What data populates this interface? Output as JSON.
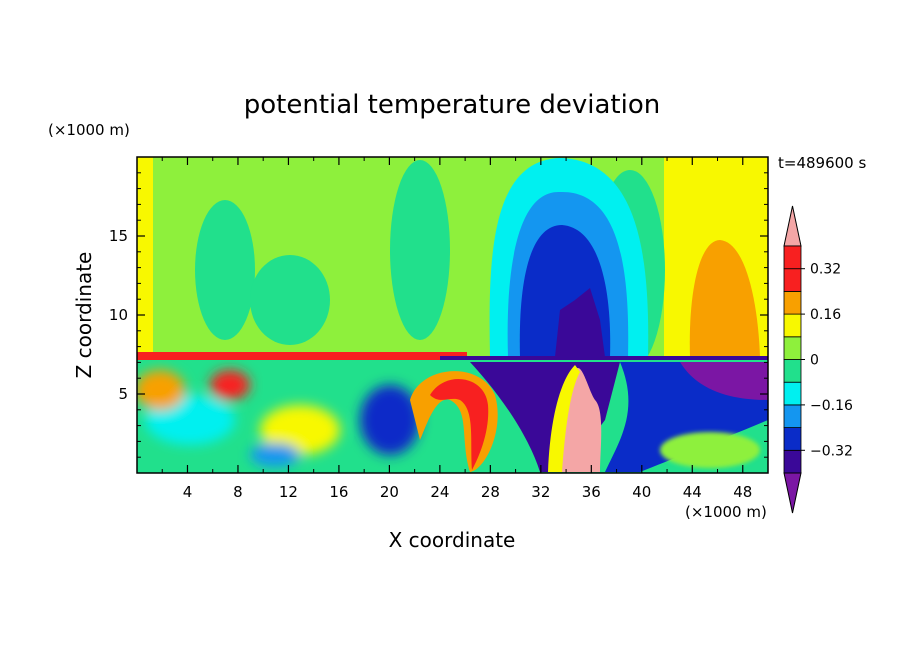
{
  "chart_data": {
    "type": "heatmap",
    "title": "potential temperature deviation",
    "time_label": "t=489600 s",
    "xlabel": "X coordinate",
    "ylabel": "Z coordinate",
    "x_unit": "(×1000 m)",
    "y_unit": "(×1000 m)",
    "xlim": [
      0,
      50
    ],
    "ylim": [
      0,
      20
    ],
    "x_ticks": [
      4,
      8,
      12,
      16,
      20,
      24,
      28,
      32,
      36,
      40,
      44,
      48
    ],
    "y_ticks": [
      5,
      10,
      15
    ],
    "colorbar": {
      "levels": [
        -0.4,
        -0.32,
        -0.24,
        -0.16,
        -0.08,
        0,
        0.08,
        0.16,
        0.24,
        0.32,
        0.4
      ],
      "tick_labels": [
        "0.32",
        "0.16",
        "0",
        "−0.16",
        "−0.32"
      ],
      "tick_values": [
        0.32,
        0.16,
        0,
        -0.16,
        -0.32
      ],
      "colors_low_to_high": [
        "#7b16a4",
        "#3a0898",
        "#0a2cc8",
        "#1496f0",
        "#00f0f0",
        "#21e08c",
        "#8ef03c",
        "#f8f800",
        "#f8a000",
        "#f82020",
        "#f4a6a6"
      ],
      "extend": "both"
    },
    "field_features": [
      {
        "x": [
          3,
          9
        ],
        "z": [
          10,
          18
        ],
        "value": 0.04
      },
      {
        "x": [
          30,
          38
        ],
        "z": [
          6,
          16
        ],
        "value": -0.2
      },
      {
        "x": [
          33,
          38
        ],
        "z": [
          7,
          14
        ],
        "value": -0.3
      },
      {
        "x": [
          42,
          48
        ],
        "z": [
          7,
          14
        ],
        "value": 0.2
      },
      {
        "x": [
          33,
          36
        ],
        "z": [
          0,
          5
        ],
        "value": 0.42
      },
      {
        "x": [
          28,
          34
        ],
        "z": [
          0,
          7
        ],
        "value": -0.36
      }
    ]
  }
}
